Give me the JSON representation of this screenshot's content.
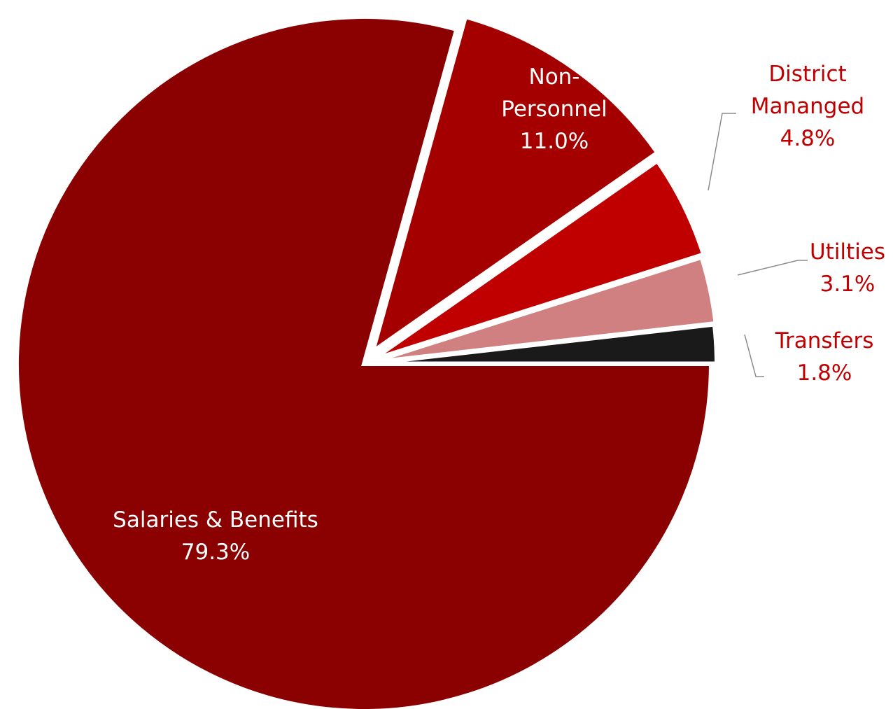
{
  "chart_data": {
    "type": "pie",
    "title": "",
    "slices": [
      {
        "label": [
          "Salaries & Benefits"
        ],
        "value": 79.3,
        "value_label": "79.3%",
        "color": "#8b0000"
      },
      {
        "label": [
          "Non-",
          "Personnel"
        ],
        "value": 11.0,
        "value_label": "11.0%",
        "color": "#a50000"
      },
      {
        "label": [
          "District",
          "Mananged"
        ],
        "value": 4.8,
        "value_label": "4.8%",
        "color": "#c00000"
      },
      {
        "label": [
          "Utilties"
        ],
        "value": 3.1,
        "value_label": "3.1%",
        "color": "#d08080"
      },
      {
        "label": [
          "Transfers"
        ],
        "value": 1.8,
        "value_label": "1.8%",
        "color": "#1a1a1a"
      }
    ],
    "exploded_slices": [
      "Non-Personnel",
      "District Mananged",
      "Utilties",
      "Transfers"
    ],
    "label_colors": {
      "inside": "#ffffff",
      "outside": "#c00000"
    }
  }
}
